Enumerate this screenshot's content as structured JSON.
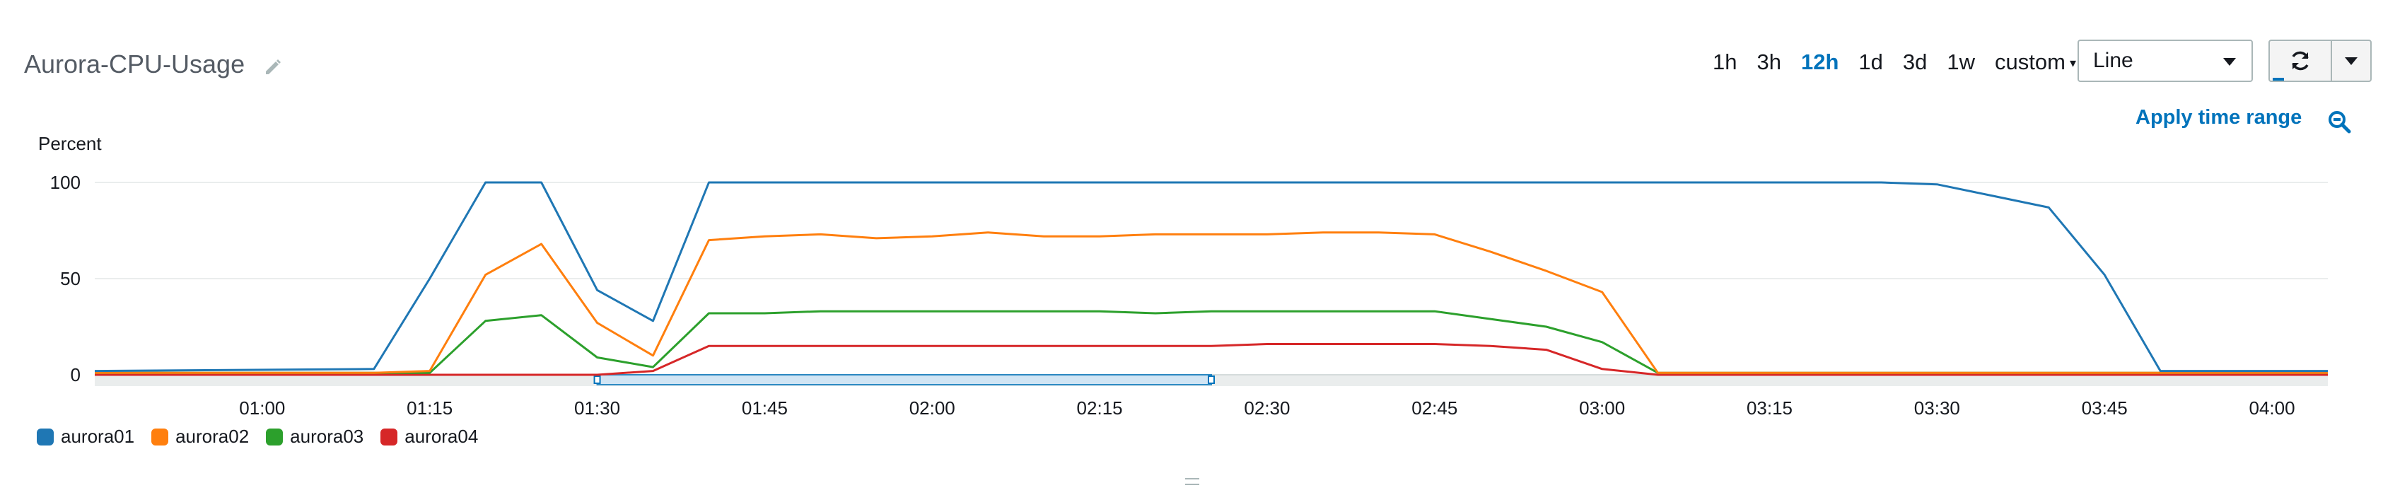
{
  "widget": {
    "title": "Aurora-CPU-Usage",
    "icons": {
      "edit": "pencil-icon",
      "refresh": "refresh-icon",
      "zoom": "zoom-out-icon"
    }
  },
  "time_ranges": {
    "options": [
      "1h",
      "3h",
      "12h",
      "1d",
      "3d",
      "1w"
    ],
    "active": "12h",
    "custom_label": "custom"
  },
  "view_select": {
    "value": "Line"
  },
  "apply_time_range_label": "Apply time range",
  "chart_data": {
    "type": "line",
    "ylabel": "Percent",
    "ylim": [
      0,
      100
    ],
    "yticks": [
      0,
      50,
      100
    ],
    "x_start": "00:45",
    "x_end": "04:05",
    "xticks": [
      "01:00",
      "01:15",
      "01:30",
      "01:45",
      "02:00",
      "02:15",
      "02:30",
      "02:45",
      "03:00",
      "03:15",
      "03:30",
      "03:45",
      "04:00"
    ],
    "x": [
      "00:45",
      "01:10",
      "01:15",
      "01:20",
      "01:25",
      "01:30",
      "01:35",
      "01:40",
      "01:45",
      "01:50",
      "01:55",
      "02:00",
      "02:05",
      "02:10",
      "02:15",
      "02:20",
      "02:25",
      "02:30",
      "02:35",
      "02:40",
      "02:45",
      "02:50",
      "02:55",
      "03:00",
      "03:05",
      "03:10",
      "03:15",
      "03:20",
      "03:25",
      "03:30",
      "03:35",
      "03:40",
      "03:45",
      "03:50",
      "04:05"
    ],
    "series": [
      {
        "name": "aurora01",
        "color": "#1f77b4",
        "values": [
          2,
          3,
          50,
          100,
          100,
          44,
          28,
          100,
          100,
          100,
          100,
          100,
          100,
          100,
          100,
          100,
          100,
          100,
          100,
          100,
          100,
          100,
          100,
          100,
          100,
          100,
          100,
          100,
          100,
          99,
          93,
          87,
          52,
          2,
          2
        ]
      },
      {
        "name": "aurora02",
        "color": "#ff7f0e",
        "values": [
          1,
          1,
          2,
          52,
          68,
          27,
          10,
          70,
          72,
          73,
          71,
          72,
          74,
          72,
          72,
          73,
          73,
          73,
          74,
          74,
          73,
          64,
          54,
          43,
          1,
          1,
          1,
          1,
          1,
          1,
          1,
          1,
          1,
          1,
          1
        ]
      },
      {
        "name": "aurora03",
        "color": "#2ca02c",
        "values": [
          1,
          1,
          1,
          28,
          31,
          9,
          4,
          32,
          32,
          33,
          33,
          33,
          33,
          33,
          33,
          32,
          33,
          33,
          33,
          33,
          33,
          29,
          25,
          17,
          1,
          1,
          1,
          1,
          1,
          1,
          1,
          1,
          1,
          1,
          1
        ]
      },
      {
        "name": "aurora04",
        "color": "#d62728",
        "values": [
          0,
          0,
          0,
          0,
          0,
          0,
          2,
          15,
          15,
          15,
          15,
          15,
          15,
          15,
          15,
          15,
          15,
          16,
          16,
          16,
          16,
          15,
          13,
          3,
          0,
          0,
          0,
          0,
          0,
          0,
          0,
          0,
          0,
          0,
          0
        ]
      }
    ],
    "selection_range": [
      "01:30",
      "02:25"
    ],
    "grid": true,
    "legend_position": "bottom-left"
  }
}
